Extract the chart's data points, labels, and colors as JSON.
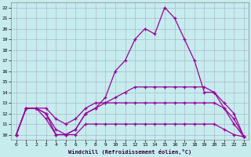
{
  "xlabel": "Windchill (Refroidissement éolien,°C)",
  "bg_color": "#c6ecee",
  "grid_color": "#b0b8d0",
  "line_color": "#990099",
  "xlim": [
    -0.5,
    23.5
  ],
  "ylim": [
    9.5,
    22.5
  ],
  "xticks": [
    0,
    1,
    2,
    3,
    4,
    5,
    6,
    7,
    8,
    9,
    10,
    11,
    12,
    13,
    14,
    15,
    16,
    17,
    18,
    19,
    20,
    21,
    22,
    23
  ],
  "yticks": [
    10,
    11,
    12,
    13,
    14,
    15,
    16,
    17,
    18,
    19,
    20,
    21,
    22
  ],
  "curve_main": {
    "x": [
      0,
      1,
      2,
      3,
      4,
      5,
      6,
      7,
      8,
      9,
      10,
      11,
      12,
      13,
      14,
      15,
      16,
      17,
      18,
      19,
      20,
      21,
      22,
      23
    ],
    "y": [
      10,
      12.5,
      12.5,
      11.5,
      10,
      10,
      10.5,
      12,
      12.5,
      13.5,
      16,
      17,
      19,
      20,
      19.5,
      22,
      21,
      19,
      17,
      14,
      14,
      12.5,
      11,
      9.8
    ]
  },
  "curve_top": {
    "x": [
      0,
      1,
      2,
      3,
      4,
      5,
      6,
      7,
      8,
      9,
      10,
      11,
      12,
      13,
      14,
      15,
      16,
      17,
      18,
      19,
      20,
      21,
      22,
      23
    ],
    "y": [
      10,
      12.5,
      12.5,
      12,
      10.5,
      10,
      10.5,
      12,
      12.5,
      13,
      13.5,
      14,
      14.5,
      14.5,
      14.5,
      14.5,
      14.5,
      14.5,
      14.5,
      14.5,
      14,
      13,
      12,
      9.8
    ]
  },
  "curve_mid1": {
    "x": [
      0,
      1,
      2,
      3,
      4,
      5,
      6,
      7,
      8,
      9,
      10,
      11,
      12,
      13,
      14,
      15,
      16,
      17,
      18,
      19,
      20,
      21,
      22,
      23
    ],
    "y": [
      10,
      12.5,
      12.5,
      12.5,
      11.5,
      11,
      11.5,
      12.5,
      13,
      13,
      13,
      13,
      13,
      13,
      13,
      13,
      13,
      13,
      13,
      13,
      13,
      12.5,
      11.5,
      9.8
    ]
  },
  "curve_bot": {
    "x": [
      0,
      1,
      2,
      3,
      4,
      5,
      6,
      7,
      8,
      9,
      10,
      11,
      12,
      13,
      14,
      15,
      16,
      17,
      18,
      19,
      20,
      21,
      22,
      23
    ],
    "y": [
      10,
      12.5,
      12.5,
      12,
      10,
      10,
      10,
      11,
      11,
      11,
      11,
      11,
      11,
      11,
      11,
      11,
      11,
      11,
      11,
      11,
      11,
      10.5,
      10,
      9.8
    ]
  }
}
